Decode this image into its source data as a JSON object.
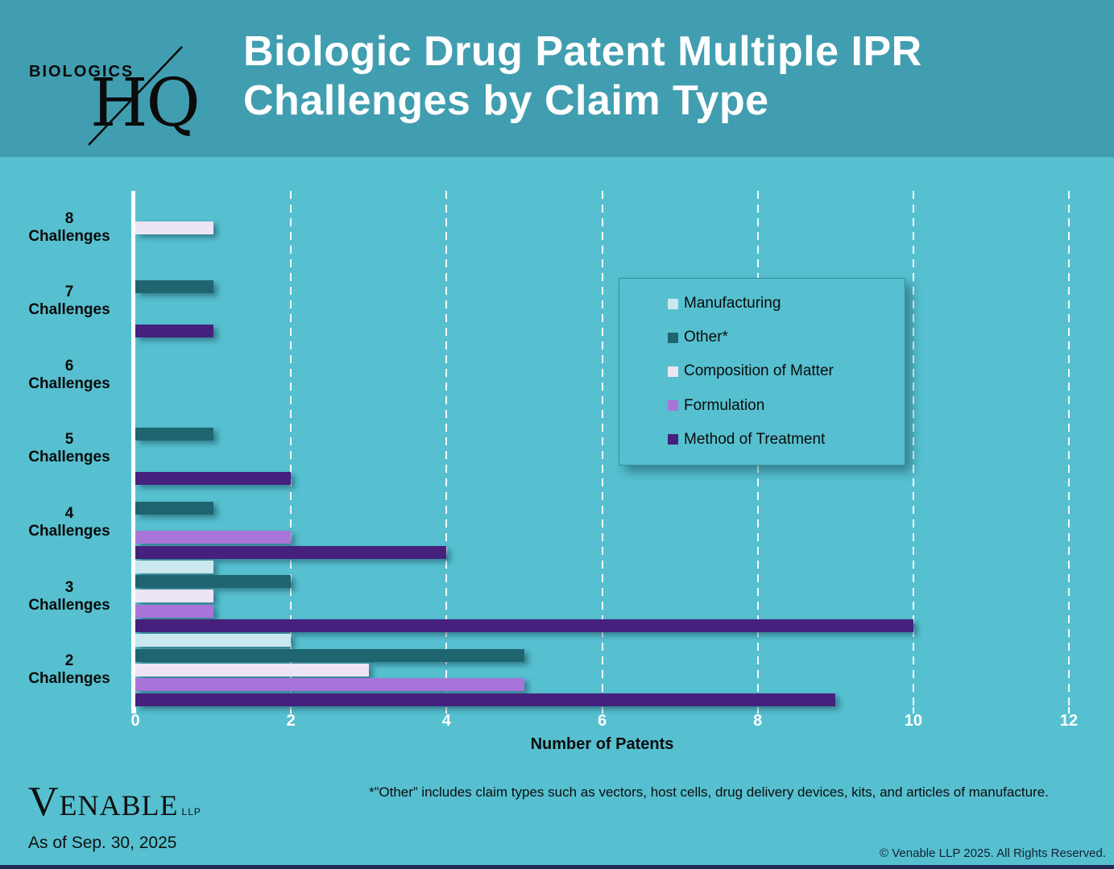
{
  "colors": {
    "header_bg": "#419EB0",
    "body_bg": "#56C0D0",
    "axis": "#FFFFFF",
    "gridline": "#FFFFFF",
    "tick_label": "#FFFFFF",
    "text_dark": "#0D0D0D",
    "bottom_strip": "#1E2A52"
  },
  "header": {
    "brand_line1": "BIOLOGICS",
    "brand_line2": "HQ",
    "title_line1": "Biologic Drug Patent Multiple IPR",
    "title_line2": "Challenges by Claim Type"
  },
  "chart_data": {
    "type": "bar",
    "orientation": "horizontal",
    "title": "Biologic Drug Patent Multiple IPR Challenges by Claim Type",
    "xlabel": "Number of Patents",
    "xlim": [
      0,
      12
    ],
    "xticks": [
      0,
      2,
      4,
      6,
      8,
      10,
      12
    ],
    "grid": "vertical dashed white gridlines",
    "legend_position": "center right",
    "categories": [
      "8 Challenges",
      "7 Challenges",
      "6 Challenges",
      "5 Challenges",
      "4 Challenges",
      "3 Challenges",
      "2 Challenges"
    ],
    "series": [
      {
        "name": "Manufacturing",
        "color": "#C9E8EF",
        "values": [
          0,
          0,
          0,
          0,
          0,
          1,
          2
        ]
      },
      {
        "name": "Other*",
        "color": "#1F6570",
        "values": [
          0,
          1,
          0,
          1,
          1,
          2,
          5
        ]
      },
      {
        "name": "Composition of Matter",
        "color": "#EDE4F4",
        "values": [
          1,
          0,
          0,
          0,
          0,
          1,
          3
        ]
      },
      {
        "name": "Formulation",
        "color": "#A974DA",
        "values": [
          0,
          0,
          0,
          0,
          2,
          1,
          5
        ]
      },
      {
        "name": "Method of Treatment",
        "color": "#45217D",
        "values": [
          0,
          1,
          0,
          2,
          4,
          10,
          9
        ]
      }
    ]
  },
  "footer": {
    "footnote": "*”Other” includes claim types such as vectors, host cells, drug delivery devices, kits, and articles of manufacture.",
    "logo_name": "Venable",
    "logo_suffix": "LLP",
    "as_of": "As of Sep. 30, 2025",
    "copyright": "© Venable LLP 2025. All Rights Reserved."
  }
}
